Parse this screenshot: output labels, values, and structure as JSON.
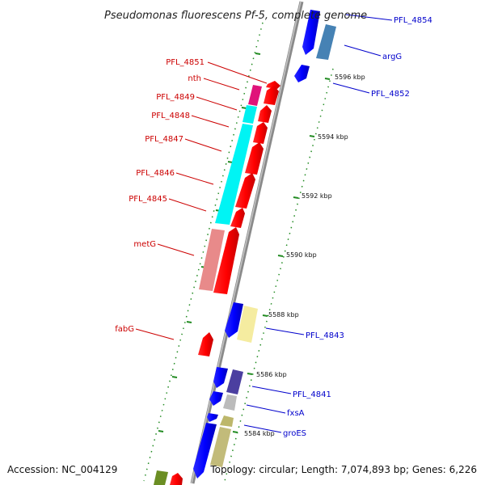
{
  "title": "Pseudomonas fluorescens Pf-5, complete genome",
  "footer": {
    "accession": "Accession: NC_004129",
    "summary": "Topology: circular; Length: 7,074,893 bp; Genes: 6,226"
  },
  "colors": {
    "reverse_strand_label": "#cc0000",
    "forward_strand_label": "#0000cc",
    "backbone": "#999999",
    "tick_green": "#228B22"
  },
  "reverse_genes": [
    {
      "name": "PFL_4851"
    },
    {
      "name": "nth"
    },
    {
      "name": "PFL_4849"
    },
    {
      "name": "PFL_4848"
    },
    {
      "name": "PFL_4847"
    },
    {
      "name": "PFL_4846"
    },
    {
      "name": "PFL_4845"
    },
    {
      "name": "metG"
    },
    {
      "name": "fabG"
    }
  ],
  "forward_genes": [
    {
      "name": "PFL_4854"
    },
    {
      "name": "argG"
    },
    {
      "name": "PFL_4852"
    },
    {
      "name": "PFL_4843"
    },
    {
      "name": "PFL_4841"
    },
    {
      "name": "fxsA"
    },
    {
      "name": "groES"
    }
  ],
  "ticks": [
    {
      "label": "5596 kbp"
    },
    {
      "label": "5594 kbp"
    },
    {
      "label": "5592 kbp"
    },
    {
      "label": "5590 kbp"
    },
    {
      "label": "5588 kbp"
    },
    {
      "label": "5586 kbp"
    },
    {
      "label": "5584 kbp"
    }
  ]
}
